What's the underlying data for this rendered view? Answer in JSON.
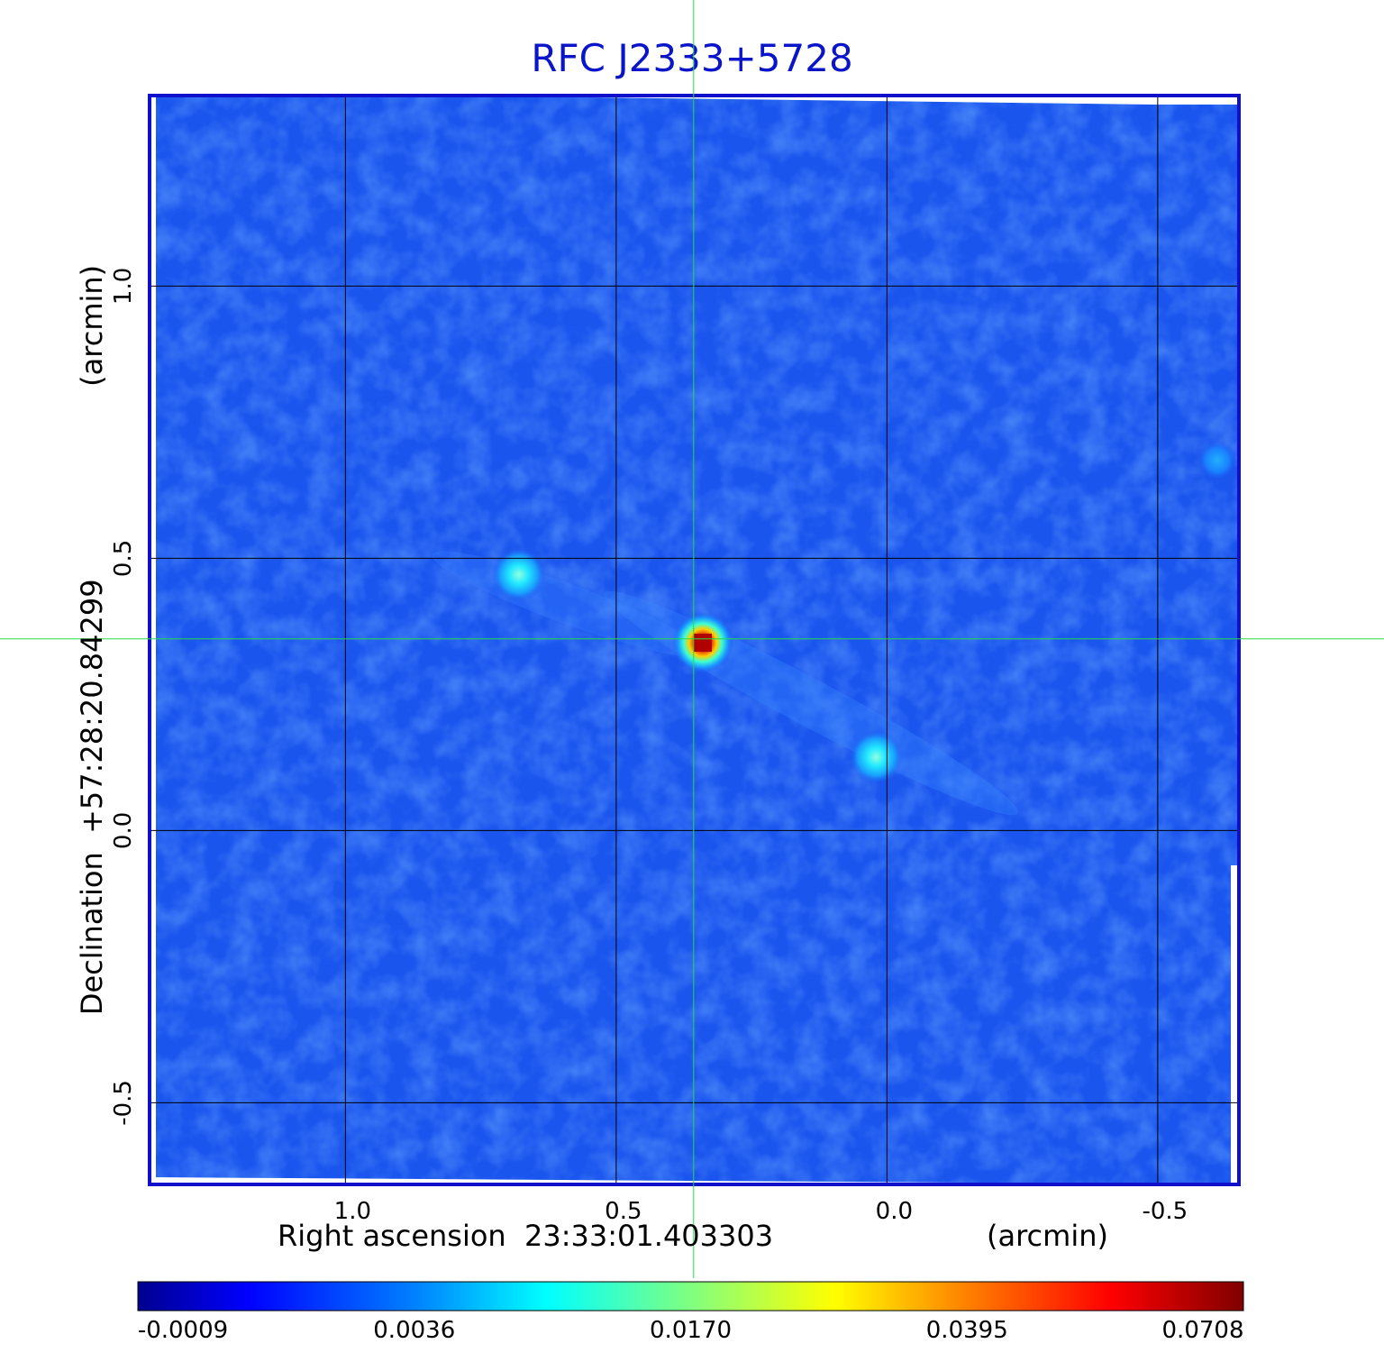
{
  "chart_data": {
    "type": "heatmap",
    "title": "RFC J2333+5728",
    "xlabel": "Right ascension  23:33:01.403303",
    "xunit": "(arcmin)",
    "ylabel": "Declination  +57:28:20.84299",
    "yunit": "(arcmin)",
    "xlim": [
      1.36,
      -0.65
    ],
    "ylim": [
      -0.65,
      1.35
    ],
    "x_ticks": [
      1.0,
      0.5,
      0.0,
      -0.5
    ],
    "x_tick_labels": [
      "1.0",
      "0.5",
      "0.0",
      "-0.5"
    ],
    "y_ticks": [
      1.0,
      0.5,
      0.0,
      -0.5
    ],
    "y_tick_labels": [
      "1.0",
      "0.5",
      "0.0",
      "-0.5"
    ],
    "grid": true,
    "colormap": "jet",
    "crosshair": {
      "x": 0.357,
      "y": 0.352,
      "color": "#22dd44"
    },
    "sources": [
      {
        "x": 0.34,
        "y": 0.345,
        "peak": 0.0708
      },
      {
        "x": 0.68,
        "y": 0.47,
        "peak": 0.009
      },
      {
        "x": 0.02,
        "y": 0.135,
        "peak": 0.0085
      },
      {
        "x": -0.61,
        "y": 0.68,
        "peak": 0.0045
      }
    ],
    "colorbar": {
      "ticks": [
        -0.0009,
        0.0036,
        0.017,
        0.0395,
        0.0708
      ],
      "tick_labels": [
        "-0.0009",
        "0.0036",
        "0.0170",
        "0.0395",
        "0.0708"
      ]
    }
  },
  "colors": {
    "title": "#0a14c8",
    "background_field": "#1a55ee",
    "frame": "#1010cc",
    "grid": "#000000",
    "crosshair": "#22dd44"
  }
}
